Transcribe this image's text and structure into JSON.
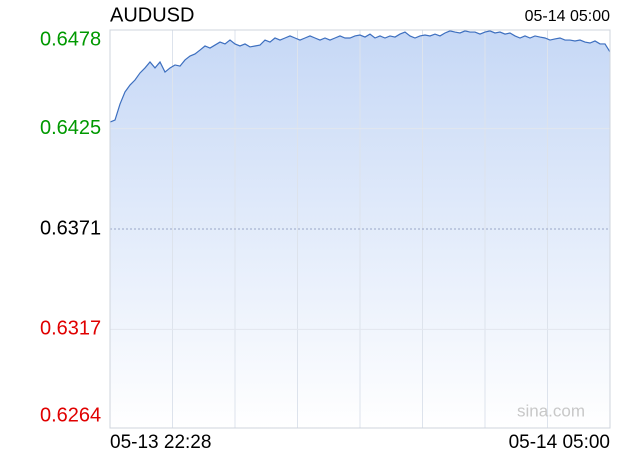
{
  "chart_data": {
    "type": "line",
    "title": "AUDUSD",
    "timestamp": "05-14 05:00",
    "watermark": "sina.com",
    "x_labels": [
      "05-13 22:28",
      "05-14 05:00"
    ],
    "ylim": [
      0.6264,
      0.6478
    ],
    "yticks": [
      0.6264,
      0.6317,
      0.6371,
      0.6425,
      0.6478
    ],
    "up_color": "#009900",
    "down_color": "#e00000",
    "flat_color": "#000000",
    "grid": true,
    "series": [
      {
        "name": "AUDUSD",
        "color": "#3d6fbf",
        "fill": "#c6d8f6",
        "values": [
          0.64285,
          0.64296,
          0.64382,
          0.64447,
          0.64484,
          0.64511,
          0.64549,
          0.64576,
          0.64608,
          0.64576,
          0.64608,
          0.64554,
          0.64576,
          0.64592,
          0.64586,
          0.64619,
          0.6464,
          0.64651,
          0.64672,
          0.64694,
          0.64683,
          0.64699,
          0.64715,
          0.64705,
          0.64726,
          0.64705,
          0.64694,
          0.64705,
          0.64689,
          0.64694,
          0.64699,
          0.64726,
          0.64715,
          0.64737,
          0.64726,
          0.64737,
          0.64748,
          0.64737,
          0.64726,
          0.64737,
          0.64748,
          0.64737,
          0.64726,
          0.64737,
          0.64726,
          0.64737,
          0.64748,
          0.64737,
          0.64737,
          0.64748,
          0.64753,
          0.64742,
          0.64758,
          0.64737,
          0.64748,
          0.64737,
          0.64748,
          0.64742,
          0.64758,
          0.64769,
          0.64748,
          0.64737,
          0.64748,
          0.64753,
          0.64748,
          0.64758,
          0.64748,
          0.64764,
          0.64775,
          0.64769,
          0.64764,
          0.64775,
          0.64769,
          0.64769,
          0.64758,
          0.64769,
          0.64775,
          0.64764,
          0.64769,
          0.64758,
          0.64764,
          0.64748,
          0.64737,
          0.64748,
          0.64737,
          0.64748,
          0.64742,
          0.64737,
          0.64726,
          0.64732,
          0.64737,
          0.64726,
          0.64726,
          0.64721,
          0.64726,
          0.64715,
          0.6471,
          0.64721,
          0.64705,
          0.64705,
          0.64662
        ]
      }
    ]
  }
}
